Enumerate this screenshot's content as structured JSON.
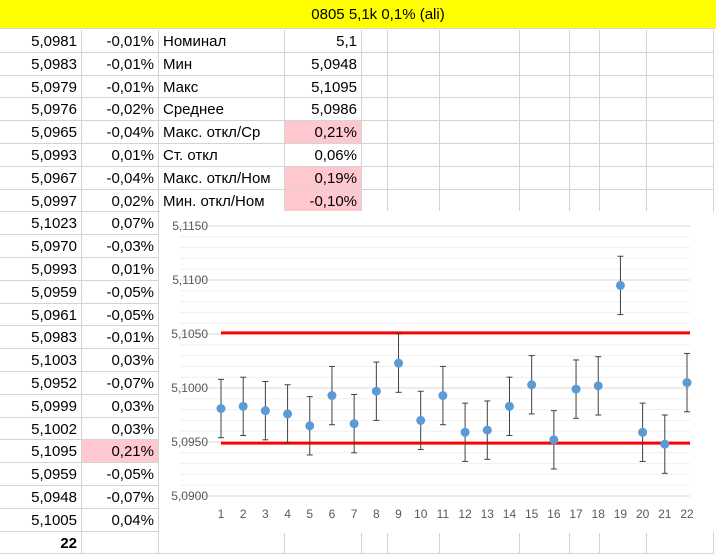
{
  "header": {
    "title": "0805 5,1k 0,1% (ali)"
  },
  "rows": [
    {
      "value": "5,0981",
      "dev": "-0,01%"
    },
    {
      "value": "5,0983",
      "dev": "-0,01%"
    },
    {
      "value": "5,0979",
      "dev": "-0,01%"
    },
    {
      "value": "5,0976",
      "dev": "-0,02%"
    },
    {
      "value": "5,0965",
      "dev": "-0,04%"
    },
    {
      "value": "5,0993",
      "dev": "0,01%"
    },
    {
      "value": "5,0967",
      "dev": "-0,04%"
    },
    {
      "value": "5,0997",
      "dev": "0,02%"
    },
    {
      "value": "5,1023",
      "dev": "0,07%"
    },
    {
      "value": "5,0970",
      "dev": "-0,03%"
    },
    {
      "value": "5,0993",
      "dev": "0,01%"
    },
    {
      "value": "5,0959",
      "dev": "-0,05%"
    },
    {
      "value": "5,0961",
      "dev": "-0,05%"
    },
    {
      "value": "5,0983",
      "dev": "-0,01%"
    },
    {
      "value": "5,1003",
      "dev": "0,03%"
    },
    {
      "value": "5,0952",
      "dev": "-0,07%"
    },
    {
      "value": "5,0999",
      "dev": "0,03%"
    },
    {
      "value": "5,1002",
      "dev": "0,03%"
    },
    {
      "value": "5,1095",
      "dev": "0,21%",
      "highlight": true
    },
    {
      "value": "5,0959",
      "dev": "-0,05%"
    },
    {
      "value": "5,0948",
      "dev": "-0,07%"
    },
    {
      "value": "5,1005",
      "dev": "0,04%"
    }
  ],
  "count": "22",
  "stats": [
    {
      "label": "Номинал",
      "value": "5,1"
    },
    {
      "label": "Мин",
      "value": "5,0948"
    },
    {
      "label": "Макс",
      "value": "5,1095"
    },
    {
      "label": "Среднее",
      "value": "5,0986"
    },
    {
      "label": "Макс. откл/Ср",
      "value": "0,21%",
      "highlight": true
    },
    {
      "label": "Ст. откл",
      "value": "0,06%"
    },
    {
      "label": "Макс. откл/Ном",
      "value": "0,19%",
      "highlight": true
    },
    {
      "label": "Мин. откл/Ном",
      "value": "-0,10%",
      "highlight": true
    }
  ],
  "colors": {
    "header": "#ffff00",
    "highlight": "#ffc7ce",
    "point": "#5b9bd5",
    "limit": "#ff0000"
  },
  "chart_data": {
    "type": "scatter",
    "x": [
      1,
      2,
      3,
      4,
      5,
      6,
      7,
      8,
      9,
      10,
      11,
      12,
      13,
      14,
      15,
      16,
      17,
      18,
      19,
      20,
      21,
      22
    ],
    "y": [
      5.0981,
      5.0983,
      5.0979,
      5.0976,
      5.0965,
      5.0993,
      5.0967,
      5.0997,
      5.1023,
      5.097,
      5.0993,
      5.0959,
      5.0961,
      5.0983,
      5.1003,
      5.0952,
      5.0999,
      5.1002,
      5.1095,
      5.0959,
      5.0948,
      5.1005
    ],
    "error_bar": 0.0027,
    "limits": [
      5.1051,
      5.0949
    ],
    "ylim": [
      5.09,
      5.115
    ],
    "yticks": [
      "5,1150",
      "5,1100",
      "5,1050",
      "5,1000",
      "5,0950",
      "5,0900"
    ],
    "xticks": [
      "1",
      "2",
      "3",
      "4",
      "5",
      "6",
      "7",
      "8",
      "9",
      "10",
      "11",
      "12",
      "13",
      "14",
      "15",
      "16",
      "17",
      "18",
      "19",
      "20",
      "21",
      "22"
    ],
    "grid": true
  }
}
